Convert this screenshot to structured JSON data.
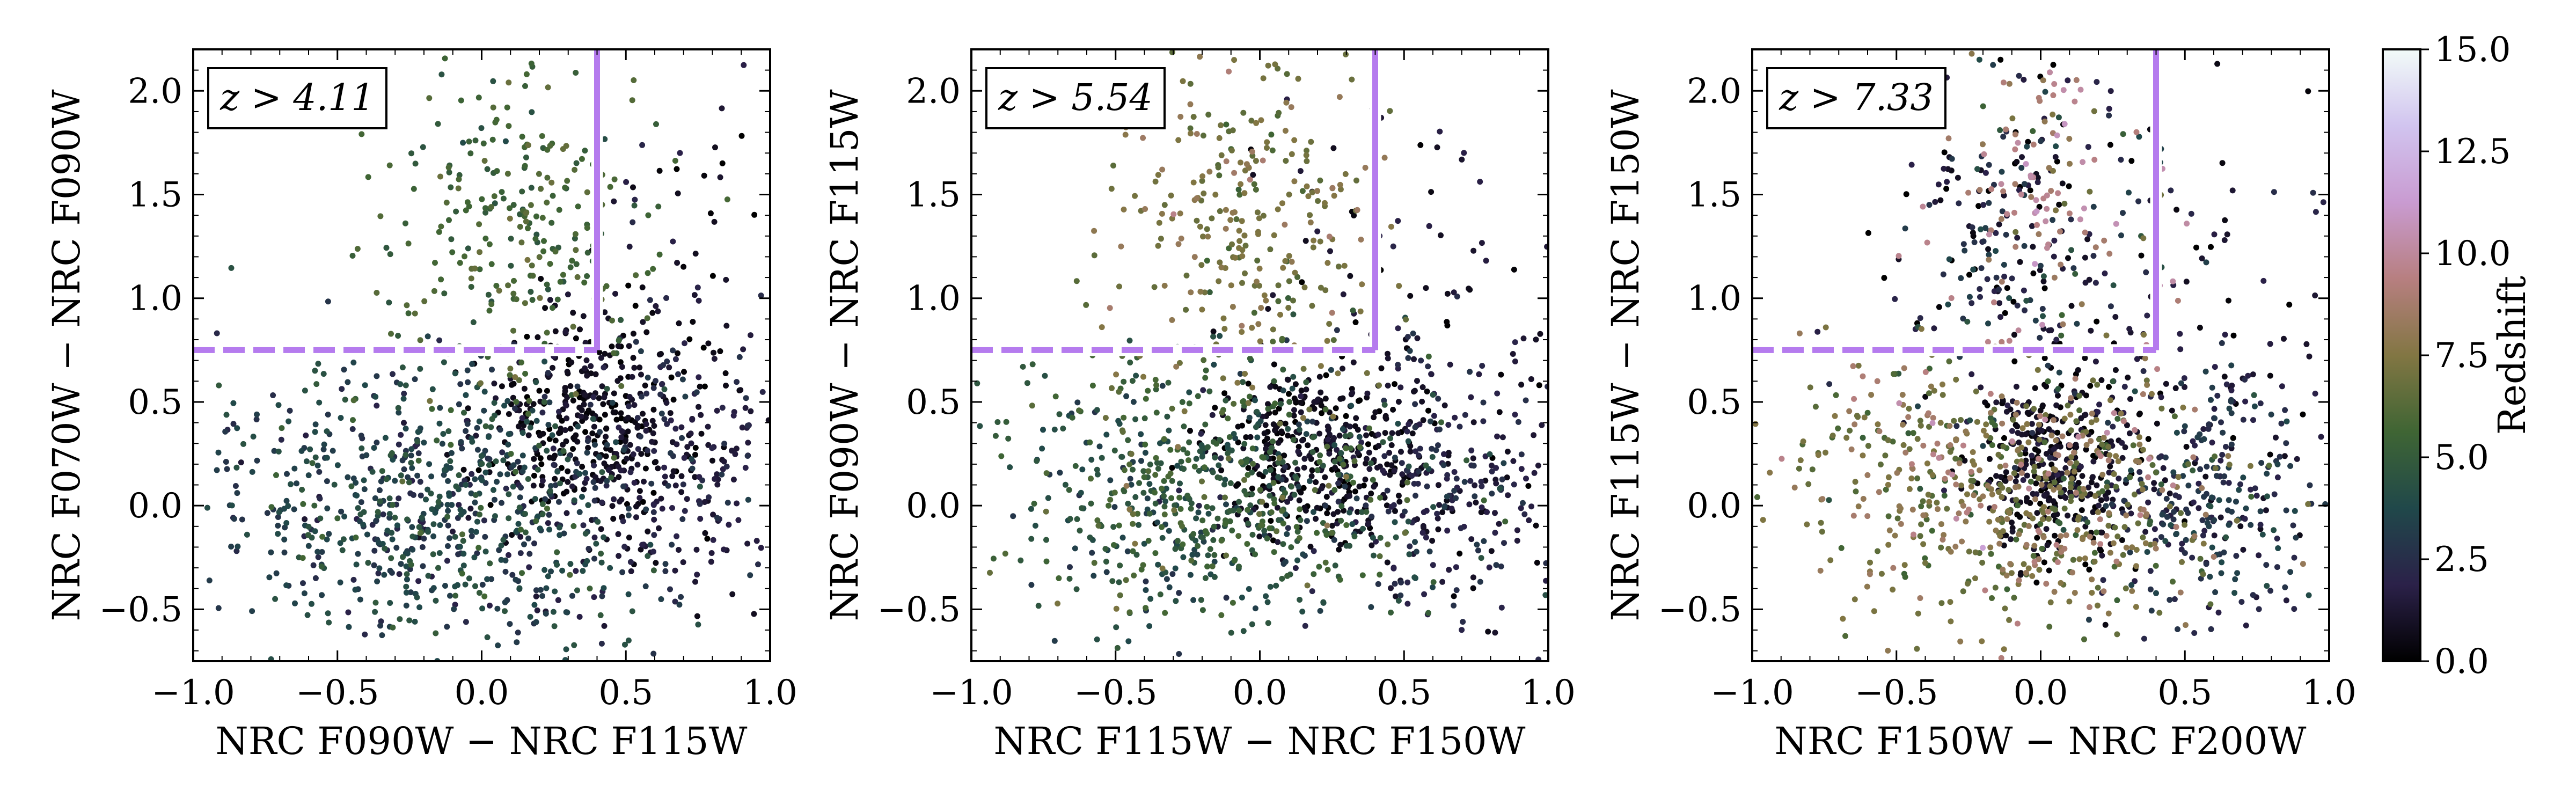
{
  "chart_data": [
    {
      "type": "scatter",
      "panel": "left",
      "xlabel": "NRC F090W − NRC F115W",
      "ylabel": "NRC F070W − NRC F090W",
      "annotation": "z > 4.11",
      "xlim": [
        -1.0,
        1.0
      ],
      "ylim": [
        -0.75,
        2.2
      ],
      "xticks": [
        -1.0,
        -0.5,
        0.0,
        0.5,
        1.0
      ],
      "xtick_labels": [
        "−1.0",
        "−0.5",
        "0.0",
        "0.5",
        "1.0"
      ],
      "yticks": [
        -0.5,
        0.0,
        0.5,
        1.0,
        1.5,
        2.0
      ],
      "ytick_labels": [
        "−0.5",
        "0.0",
        "0.5",
        "1.0",
        "1.5",
        "2.0"
      ],
      "selection_box": {
        "x_max": 0.4,
        "y_min": 0.75
      },
      "clusters": [
        {
          "x": -0.15,
          "y": 0.0,
          "sx": 0.38,
          "sy": 0.35,
          "z": 3.6,
          "zs": 1.0,
          "w": 0.46
        },
        {
          "x": 0.35,
          "y": 0.4,
          "sx": 0.18,
          "sy": 0.25,
          "z": 0.6,
          "zs": 0.45,
          "w": 0.2
        },
        {
          "x": 0.65,
          "y": 0.15,
          "sx": 0.2,
          "sy": 0.35,
          "z": 1.8,
          "zs": 0.7,
          "w": 0.14
        },
        {
          "x": 0.1,
          "y": 1.35,
          "sx": 0.22,
          "sy": 0.45,
          "z": 5.6,
          "zs": 0.7,
          "w": 0.16
        },
        {
          "x": 0.6,
          "y": 1.1,
          "sx": 0.2,
          "sy": 0.5,
          "z": 0.8,
          "zs": 0.6,
          "w": 0.04
        }
      ]
    },
    {
      "type": "scatter",
      "panel": "middle",
      "xlabel": "NRC F115W − NRC F150W",
      "ylabel": "NRC F090W − NRC F115W",
      "annotation": "z > 5.54",
      "xlim": [
        -1.0,
        1.0
      ],
      "ylim": [
        -0.75,
        2.2
      ],
      "xticks": [
        -1.0,
        -0.5,
        0.0,
        0.5,
        1.0
      ],
      "xtick_labels": [
        "−1.0",
        "−0.5",
        "0.0",
        "0.5",
        "1.0"
      ],
      "yticks": [
        -0.5,
        0.0,
        0.5,
        1.0,
        1.5,
        2.0
      ],
      "ytick_labels": [
        "−0.5",
        "0.0",
        "0.5",
        "1.0",
        "1.5",
        "2.0"
      ],
      "selection_box": {
        "x_max": 0.4,
        "y_min": 0.75
      },
      "clusters": [
        {
          "x": -0.15,
          "y": 0.05,
          "sx": 0.38,
          "sy": 0.33,
          "z": 4.6,
          "zs": 1.1,
          "w": 0.44
        },
        {
          "x": 0.2,
          "y": 0.25,
          "sx": 0.18,
          "sy": 0.22,
          "z": 0.6,
          "zs": 0.45,
          "w": 0.2
        },
        {
          "x": 0.65,
          "y": 0.1,
          "sx": 0.2,
          "sy": 0.32,
          "z": 2.0,
          "zs": 0.8,
          "w": 0.14
        },
        {
          "x": -0.05,
          "y": 1.35,
          "sx": 0.22,
          "sy": 0.45,
          "z": 7.2,
          "zs": 0.8,
          "w": 0.18
        },
        {
          "x": 0.55,
          "y": 1.0,
          "sx": 0.25,
          "sy": 0.45,
          "z": 1.0,
          "zs": 0.7,
          "w": 0.04
        }
      ]
    },
    {
      "type": "scatter",
      "panel": "right",
      "xlabel": "NRC F150W − NRC F200W",
      "ylabel": "NRC F115W − NRC F150W",
      "annotation": "z > 7.33",
      "xlim": [
        -1.0,
        1.0
      ],
      "ylim": [
        -0.75,
        2.2
      ],
      "xticks": [
        -1.0,
        -0.5,
        0.0,
        0.5,
        1.0
      ],
      "xtick_labels": [
        "−1.0",
        "−0.5",
        "0.0",
        "0.5",
        "1.0"
      ],
      "yticks": [
        -0.5,
        0.0,
        0.5,
        1.0,
        1.5,
        2.0
      ],
      "ytick_labels": [
        "−0.5",
        "0.0",
        "0.5",
        "1.0",
        "1.5",
        "2.0"
      ],
      "selection_box": {
        "x_max": 0.4,
        "y_min": 0.75
      },
      "clusters": [
        {
          "x": -0.1,
          "y": 0.05,
          "sx": 0.35,
          "sy": 0.3,
          "z": 7.4,
          "zs": 1.2,
          "w": 0.34
        },
        {
          "x": 0.05,
          "y": 0.2,
          "sx": 0.15,
          "sy": 0.22,
          "z": 0.7,
          "zs": 0.5,
          "w": 0.2
        },
        {
          "x": 0.6,
          "y": 0.05,
          "sx": 0.2,
          "sy": 0.3,
          "z": 2.5,
          "zs": 0.9,
          "w": 0.16
        },
        {
          "x": -0.05,
          "y": 1.25,
          "sx": 0.25,
          "sy": 0.45,
          "z": 2.0,
          "zs": 1.6,
          "w": 0.16
        },
        {
          "x": 0.0,
          "y": 1.45,
          "sx": 0.2,
          "sy": 0.4,
          "z": 9.2,
          "zs": 1.0,
          "w": 0.06
        },
        {
          "x": 0.7,
          "y": 0.85,
          "sx": 0.2,
          "sy": 0.5,
          "z": 1.2,
          "zs": 0.8,
          "w": 0.04
        },
        {
          "x": -0.5,
          "y": 0.35,
          "sx": 0.2,
          "sy": 0.2,
          "z": 7.0,
          "zs": 1.0,
          "w": 0.04
        }
      ]
    }
  ],
  "colorbar": {
    "label": "Redshift",
    "range": [
      0.0,
      15.0
    ],
    "ticks": [
      0.0,
      2.5,
      5.0,
      7.5,
      10.0,
      12.5,
      15.0
    ],
    "tick_labels": [
      "0.0",
      "2.5",
      "5.0",
      "7.5",
      "10.0",
      "12.5",
      "15.0"
    ],
    "colormap": "cubehelix",
    "colormap_stops": [
      "#000000",
      "#2b2149",
      "#20484a",
      "#3f6534",
      "#827643",
      "#b77f80",
      "#c99bd1",
      "#d1c4ef",
      "#f2fbf8"
    ]
  },
  "style": {
    "selection_color": "#b57bee",
    "selection_halo": "#ffffff"
  }
}
